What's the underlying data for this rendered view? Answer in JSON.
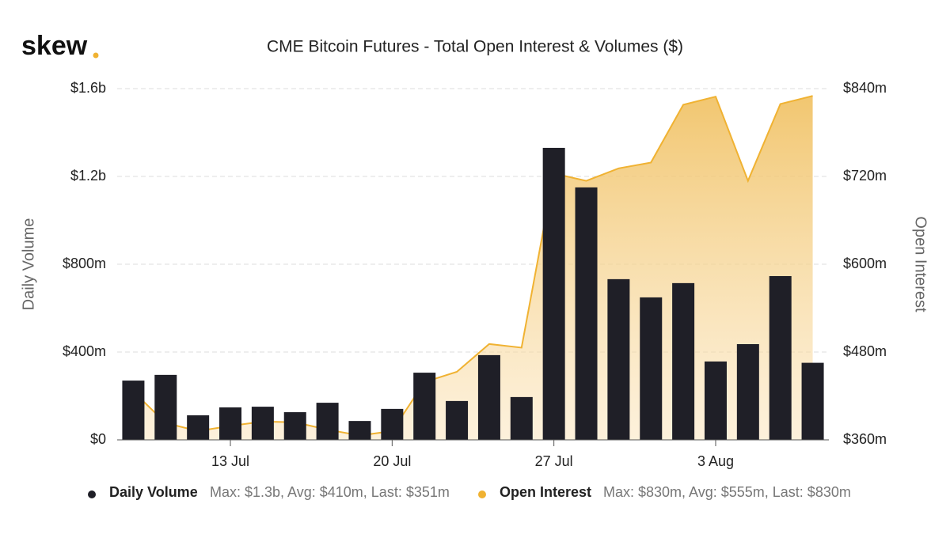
{
  "chart_data": {
    "type": "bar",
    "logo": "skew",
    "title": "CME Bitcoin Futures - Total Open Interest & Volumes ($)",
    "y_label": "Daily Volume",
    "y2_label": "Open Interest",
    "categories": [
      null,
      null,
      null,
      "13 Jul",
      null,
      null,
      null,
      null,
      "20 Jul",
      null,
      null,
      null,
      null,
      "27 Jul",
      null,
      null,
      null,
      null,
      "3 Aug",
      null,
      null,
      null
    ],
    "ylim": [
      0,
      1600
    ],
    "yticks": [
      {
        "value": 0,
        "label": "$0"
      },
      {
        "value": 400,
        "label": "$400m"
      },
      {
        "value": 800,
        "label": "$800m"
      },
      {
        "value": 1200,
        "label": "$1.2b"
      },
      {
        "value": 1600,
        "label": "$1.6b"
      }
    ],
    "y2lim": [
      360,
      840
    ],
    "y2ticks": [
      {
        "value": 360,
        "label": "$360m"
      },
      {
        "value": 480,
        "label": "$480m"
      },
      {
        "value": 600,
        "label": "$600m"
      },
      {
        "value": 720,
        "label": "$720m"
      },
      {
        "value": 840,
        "label": "$840m"
      }
    ],
    "grid": true,
    "series": [
      {
        "name": "Daily Volume",
        "type": "bar",
        "color": "#1f1f27",
        "stats": "Max: $1.3b, Avg: $410m, Last: $351m",
        "values": [
          270,
          296,
          112,
          148,
          151,
          126,
          169,
          86,
          141,
          306,
          177,
          386,
          195,
          1330,
          1150,
          732,
          649,
          714,
          357,
          436,
          746,
          351
        ]
      },
      {
        "name": "Open Interest",
        "type": "area",
        "axis": "y2",
        "color": "#f0b232",
        "stats": "Max: $830m, Avg: $555m, Last: $830m",
        "values": [
          426,
          383,
          372,
          379,
          385,
          384,
          374,
          366,
          372,
          439,
          453,
          491,
          486,
          724,
          714,
          731,
          739,
          818,
          829,
          714,
          819,
          830
        ]
      }
    ]
  }
}
